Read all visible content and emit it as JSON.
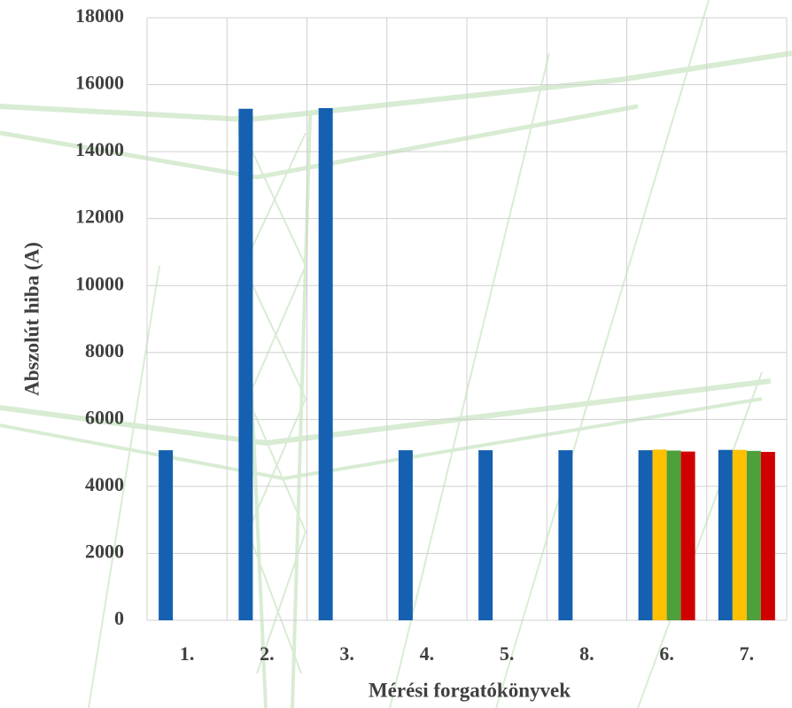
{
  "chart_data": {
    "type": "bar",
    "x_label": "Mérési forgatókönyvek",
    "y_label": "Abszolút hiba (A)",
    "categories": [
      "1.",
      "2.",
      "3.",
      "4.",
      "5.",
      "8.",
      "6.",
      "7."
    ],
    "series": [
      {
        "color": "#1560b0",
        "values": [
          5080,
          15280,
          15300,
          5080,
          5080,
          5080,
          5080,
          5090
        ]
      },
      {
        "color": "#ffc000",
        "values": [
          null,
          null,
          null,
          null,
          null,
          null,
          5100,
          5090
        ]
      },
      {
        "color": "#4ea03a",
        "values": [
          null,
          null,
          null,
          null,
          null,
          null,
          5070,
          5060
        ]
      },
      {
        "color": "#d00000",
        "values": [
          null,
          null,
          null,
          null,
          null,
          null,
          5040,
          5030
        ]
      }
    ],
    "ylim": [
      0,
      18000
    ],
    "yticks": [
      0,
      2000,
      4000,
      6000,
      8000,
      10000,
      12000,
      14000,
      16000,
      18000
    ],
    "grid": true
  }
}
